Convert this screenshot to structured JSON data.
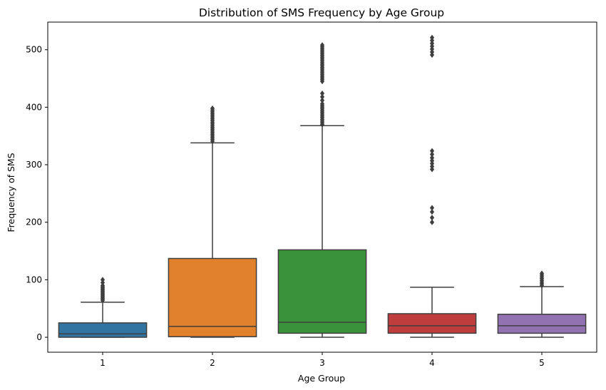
{
  "chart_data": {
    "type": "box",
    "title": "Distribution of SMS Frequency by Age Group",
    "xlabel": "Age Group",
    "ylabel": "Frequency of SMS",
    "ylim": [
      -26,
      548
    ],
    "yticks": [
      0,
      100,
      200,
      300,
      400,
      500
    ],
    "grid": false,
    "series": [
      {
        "category": "1",
        "color": "#3274a1",
        "q1": 0,
        "median": 6,
        "q3": 25,
        "whisker_low": 0,
        "whisker_high": 61,
        "outliers": [
          64,
          66,
          68,
          70,
          72,
          74,
          76,
          78,
          80,
          82,
          84,
          86,
          88,
          90,
          95,
          100
        ]
      },
      {
        "category": "2",
        "color": "#e1812c",
        "q1": 1,
        "median": 19,
        "q3": 137,
        "whisker_low": 0,
        "whisker_high": 338,
        "outliers": [
          341,
          344,
          347,
          350,
          353,
          356,
          359,
          362,
          365,
          368,
          371,
          374,
          377,
          380,
          383,
          386,
          389,
          392,
          395,
          398
        ]
      },
      {
        "category": "3",
        "color": "#3a923a",
        "q1": 7,
        "median": 26,
        "q3": 152,
        "whisker_low": 0,
        "whisker_high": 368,
        "outliers": [
          370,
          373,
          376,
          379,
          382,
          385,
          388,
          391,
          394,
          397,
          400,
          403,
          406,
          412,
          418,
          424,
          445,
          448,
          451,
          454,
          457,
          460,
          463,
          466,
          469,
          472,
          475,
          478,
          481,
          484,
          487,
          490,
          493,
          496,
          499,
          502,
          505,
          508
        ]
      },
      {
        "category": "4",
        "color": "#c03d3e",
        "q1": 7,
        "median": 20,
        "q3": 41,
        "whisker_low": 0,
        "whisker_high": 87,
        "outliers": [
          200,
          208,
          218,
          225,
          292,
          297,
          302,
          307,
          312,
          318,
          324,
          491,
          496,
          501,
          506,
          511,
          516,
          521
        ]
      },
      {
        "category": "5",
        "color": "#9372b2",
        "q1": 7,
        "median": 20,
        "q3": 40,
        "whisker_low": 0,
        "whisker_high": 88,
        "outliers": [
          90,
          93,
          96,
          99,
          102,
          105,
          108,
          111
        ]
      }
    ]
  }
}
